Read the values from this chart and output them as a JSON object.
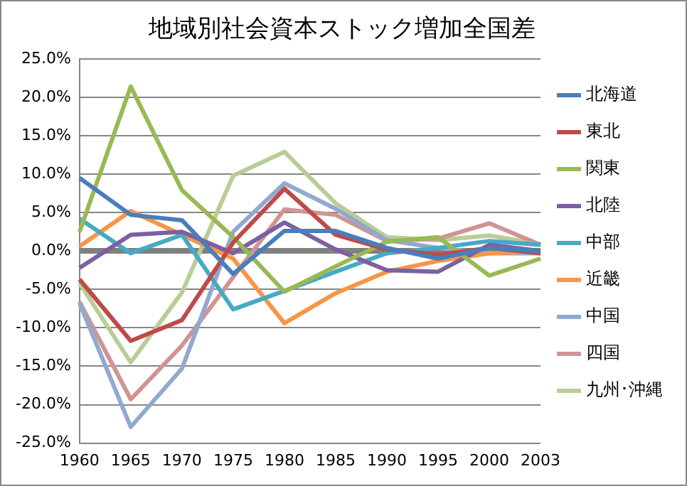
{
  "chart_data": {
    "type": "line",
    "title": "地域別社会資本ストック増加全国差",
    "categories": [
      "1960",
      "1965",
      "1970",
      "1975",
      "1980",
      "1985",
      "1990",
      "1995",
      "2000",
      "2003"
    ],
    "series": [
      {
        "name": "北海道",
        "color": "#4a7ebb",
        "values": [
          9.5,
          4.7,
          4.0,
          -3.0,
          2.6,
          2.6,
          0.4,
          -1.0,
          0.4,
          0.0
        ]
      },
      {
        "name": "東北",
        "color": "#be4b48",
        "values": [
          -3.7,
          -11.7,
          -9.0,
          1.1,
          8.1,
          2.1,
          0.2,
          -0.5,
          0.4,
          -0.3
        ]
      },
      {
        "name": "関東",
        "color": "#98b954",
        "values": [
          2.5,
          21.4,
          7.9,
          1.8,
          -5.3,
          -2.0,
          1.2,
          1.8,
          -3.2,
          -1.0
        ]
      },
      {
        "name": "北陸",
        "color": "#7d60a0",
        "values": [
          -2.2,
          2.1,
          2.5,
          -0.3,
          3.7,
          0.2,
          -2.5,
          -2.7,
          0.8,
          0.0
        ]
      },
      {
        "name": "中部",
        "color": "#46aac5",
        "values": [
          4.2,
          -0.3,
          2.1,
          -7.6,
          -5.2,
          -2.7,
          -0.3,
          0.4,
          1.3,
          0.8
        ]
      },
      {
        "name": "近畿",
        "color": "#f79646",
        "values": [
          0.6,
          5.2,
          2.1,
          -1.0,
          -9.4,
          -5.5,
          -2.7,
          -1.3,
          -0.3,
          0.0
        ]
      },
      {
        "name": "中国",
        "color": "#92a9cf",
        "values": [
          -6.8,
          -22.9,
          -15.3,
          2.5,
          8.8,
          5.5,
          1.4,
          0.4,
          -0.3,
          -0.3
        ]
      },
      {
        "name": "四国",
        "color": "#d09493",
        "values": [
          -6.6,
          -19.3,
          -12.3,
          -3.4,
          5.4,
          4.7,
          1.3,
          1.6,
          3.6,
          0.8
        ]
      },
      {
        "name": "九州･沖縄",
        "color": "#b9cd96",
        "values": [
          -4.2,
          -14.5,
          -5.4,
          9.8,
          12.9,
          6.2,
          1.8,
          1.4,
          2.0,
          0.9
        ]
      }
    ],
    "ylim": [
      -25,
      25
    ],
    "yticks": [
      {
        "value": -25,
        "label": "-25.0%"
      },
      {
        "value": -20,
        "label": "-20.0%"
      },
      {
        "value": -15,
        "label": "-15.0%"
      },
      {
        "value": -10,
        "label": "-10.0%"
      },
      {
        "value": -5,
        "label": "-5.0%"
      },
      {
        "value": 0,
        "label": "0.0%"
      },
      {
        "value": 5,
        "label": "5.0%"
      },
      {
        "value": 10,
        "label": "10.0%"
      },
      {
        "value": 15,
        "label": "15.0%"
      },
      {
        "value": 20,
        "label": "20.0%"
      },
      {
        "value": 25,
        "label": "25.0%"
      }
    ],
    "grid": "y",
    "legend": "right",
    "marker": "none",
    "line_style": "solid"
  }
}
